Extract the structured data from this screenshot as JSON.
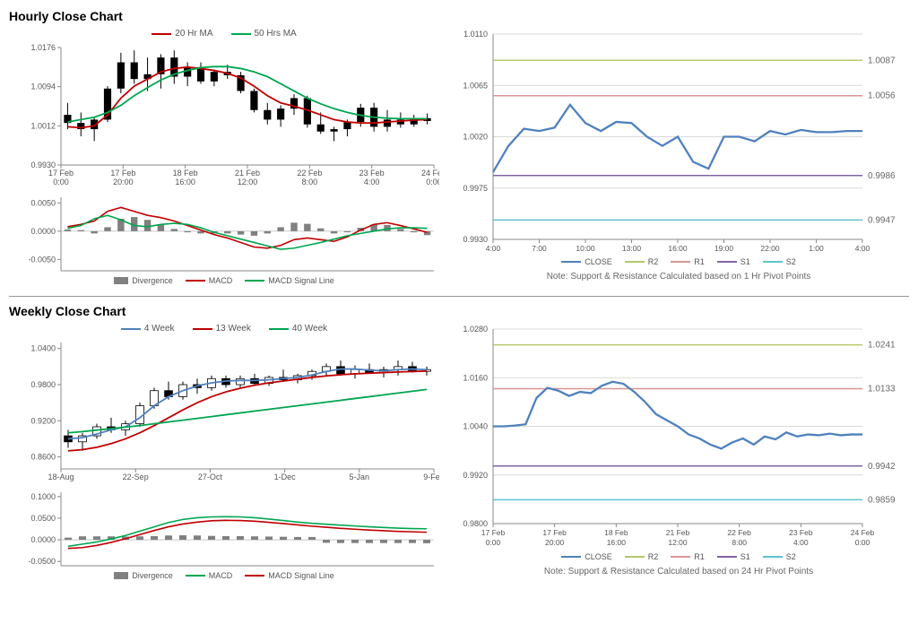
{
  "colors": {
    "ma_red": "#c00000",
    "ma_green": "#00a650",
    "ma_blue": "#4f81bd",
    "candle": "#111111",
    "div_gray": "#808080",
    "close_blue": "#4f81bd",
    "r2": "#b4c96b",
    "r1": "#d99694",
    "s1": "#8064a2",
    "s2": "#5dc3cf",
    "grid": "#d9d9d9",
    "axis": "#888888"
  },
  "hourly": {
    "title": "Hourly Close Chart",
    "price": {
      "legend": {
        "ma20": "20 Hr MA",
        "ma50": "50 Hrs MA"
      },
      "ylim": [
        0.993,
        1.0176
      ],
      "yticks": [
        0.993,
        1.0012,
        1.0094,
        1.0176
      ],
      "xticks": [
        "17 Feb",
        "17 Feb",
        "18 Feb",
        "21 Feb",
        "22 Feb",
        "23 Feb",
        "24 Feb"
      ],
      "xticks_sub": [
        "0:00",
        "20:00",
        "16:00",
        "12:00",
        "8:00",
        "4:00",
        "0:00"
      ],
      "candles": [
        {
          "o": 1.0035,
          "h": 1.006,
          "l": 1.0005,
          "c": 1.0018
        },
        {
          "o": 1.0018,
          "h": 1.004,
          "l": 0.999,
          "c": 1.0005
        },
        {
          "o": 1.0005,
          "h": 1.003,
          "l": 0.998,
          "c": 1.0025
        },
        {
          "o": 1.0025,
          "h": 1.0095,
          "l": 1.002,
          "c": 1.009
        },
        {
          "o": 1.009,
          "h": 1.0165,
          "l": 1.008,
          "c": 1.0145
        },
        {
          "o": 1.0145,
          "h": 1.017,
          "l": 1.01,
          "c": 1.011
        },
        {
          "o": 1.011,
          "h": 1.0155,
          "l": 1.0085,
          "c": 1.012
        },
        {
          "o": 1.012,
          "h": 1.0162,
          "l": 1.009,
          "c": 1.0155
        },
        {
          "o": 1.0155,
          "h": 1.017,
          "l": 1.01,
          "c": 1.0115
        },
        {
          "o": 1.0115,
          "h": 1.0145,
          "l": 1.0095,
          "c": 1.0135
        },
        {
          "o": 1.0135,
          "h": 1.0145,
          "l": 1.01,
          "c": 1.0105
        },
        {
          "o": 1.0105,
          "h": 1.013,
          "l": 1.0095,
          "c": 1.0125
        },
        {
          "o": 1.0125,
          "h": 1.014,
          "l": 1.011,
          "c": 1.0118
        },
        {
          "o": 1.0118,
          "h": 1.0125,
          "l": 1.008,
          "c": 1.0085
        },
        {
          "o": 1.0085,
          "h": 1.009,
          "l": 1.004,
          "c": 1.0045
        },
        {
          "o": 1.0045,
          "h": 1.006,
          "l": 1.0015,
          "c": 1.0025
        },
        {
          "o": 1.0025,
          "h": 1.0055,
          "l": 1.001,
          "c": 1.0048
        },
        {
          "o": 1.0048,
          "h": 1.0078,
          "l": 1.0035,
          "c": 1.007
        },
        {
          "o": 1.007,
          "h": 1.0075,
          "l": 1.0008,
          "c": 1.0015
        },
        {
          "o": 1.0015,
          "h": 1.004,
          "l": 0.9995,
          "c": 1.0
        },
        {
          "o": 1.0,
          "h": 1.001,
          "l": 0.998,
          "c": 1.0005
        },
        {
          "o": 1.0005,
          "h": 1.0025,
          "l": 0.999,
          "c": 1.002
        },
        {
          "o": 1.002,
          "h": 1.0058,
          "l": 1.001,
          "c": 1.005
        },
        {
          "o": 1.005,
          "h": 1.006,
          "l": 1.0,
          "c": 1.001
        },
        {
          "o": 1.001,
          "h": 1.0045,
          "l": 1.0,
          "c": 1.0025
        },
        {
          "o": 1.0025,
          "h": 1.004,
          "l": 1.0008,
          "c": 1.0015
        },
        {
          "o": 1.0015,
          "h": 1.0035,
          "l": 1.001,
          "c": 1.0028
        },
        {
          "o": 1.0028,
          "h": 1.0038,
          "l": 1.0015,
          "c": 1.0022
        }
      ],
      "ma20": [
        1.001,
        1.0008,
        1.0012,
        1.0035,
        1.007,
        1.0095,
        1.011,
        1.0125,
        1.0132,
        1.0135,
        1.0132,
        1.0128,
        1.0122,
        1.0112,
        1.0095,
        1.0075,
        1.006,
        1.0053,
        1.0045,
        1.0035,
        1.0025,
        1.002,
        1.0018,
        1.0018,
        1.002,
        1.0022,
        1.0024,
        1.0025
      ],
      "ma50": [
        1.002,
        1.0025,
        1.003,
        1.004,
        1.0055,
        1.0075,
        1.0092,
        1.0108,
        1.012,
        1.0128,
        1.0134,
        1.0136,
        1.0136,
        1.0132,
        1.0125,
        1.0115,
        1.01,
        1.0085,
        1.007,
        1.0058,
        1.0048,
        1.004,
        1.0034,
        1.003,
        1.0028,
        1.0027,
        1.0027,
        1.0027
      ]
    },
    "macd": {
      "ylim": [
        -0.007,
        0.006
      ],
      "yticks": [
        -0.005,
        0.0,
        0.005
      ],
      "legend": {
        "div": "Divergence",
        "macd": "MACD",
        "sig": "MACD Signal Line"
      },
      "macd": [
        0.0008,
        0.0012,
        0.0018,
        0.0035,
        0.0042,
        0.0035,
        0.0028,
        0.0024,
        0.0018,
        0.001,
        0.0002,
        -0.0006,
        -0.0012,
        -0.002,
        -0.0028,
        -0.003,
        -0.0025,
        -0.0015,
        -0.0012,
        -0.0015,
        -0.0018,
        -0.001,
        0.0002,
        0.0012,
        0.0015,
        0.001,
        0.0004,
        -0.0002
      ],
      "signal": [
        0.0005,
        0.001,
        0.0022,
        0.0028,
        0.002,
        0.001,
        0.0008,
        0.0012,
        0.0014,
        0.0012,
        0.0006,
        -0.0002,
        -0.0008,
        -0.0014,
        -0.002,
        -0.0026,
        -0.0032,
        -0.003,
        -0.0025,
        -0.002,
        -0.0014,
        -0.0008,
        -0.0004,
        0.0,
        0.0004,
        0.0006,
        0.0006,
        0.0005
      ],
      "div": [
        0.0003,
        0.0002,
        -0.0004,
        0.0007,
        0.0022,
        0.0025,
        0.002,
        0.0012,
        0.0004,
        -0.0002,
        -0.0004,
        -0.0004,
        -0.0004,
        -0.0006,
        -0.0008,
        -0.0004,
        0.0007,
        0.0015,
        0.0013,
        0.0005,
        -0.0004,
        -0.0002,
        0.0006,
        0.0012,
        0.0011,
        0.0004,
        -0.0002,
        -0.0007
      ]
    },
    "sr": {
      "ylim": [
        0.993,
        1.011
      ],
      "yticks": [
        0.993,
        0.9975,
        1.002,
        1.0065,
        1.011
      ],
      "xticks": [
        "4:00",
        "7:00",
        "10:00",
        "13:00",
        "16:00",
        "19:00",
        "22:00",
        "1:00",
        "4:00"
      ],
      "legend": {
        "close": "CLOSE",
        "r2": "R2",
        "r1": "R1",
        "s1": "S1",
        "s2": "S2"
      },
      "levels": {
        "r2": 1.0087,
        "r1": 1.0056,
        "s1": 0.9986,
        "s2": 0.9947
      },
      "level_labels": {
        "r2": "1.0087",
        "r1": "1.0056",
        "s1": "0.9986",
        "s2": "0.9947"
      },
      "close": [
        0.9989,
        1.0012,
        1.0027,
        1.0025,
        1.0028,
        1.0048,
        1.0032,
        1.0025,
        1.0033,
        1.0032,
        1.002,
        1.0012,
        1.002,
        0.9998,
        0.9992,
        1.002,
        1.002,
        1.0016,
        1.0025,
        1.0022,
        1.0026,
        1.0024,
        1.0024,
        1.0025,
        1.0025
      ],
      "note": "Note: Support & Resistance Calculated based on 1 Hr Pivot Points"
    }
  },
  "weekly": {
    "title": "Weekly Close Chart",
    "price": {
      "legend": {
        "w4": "4 Week",
        "w13": "13 Week",
        "w40": "40 Week"
      },
      "ylim": [
        0.84,
        1.05
      ],
      "yticks": [
        0.86,
        0.92,
        0.98,
        1.04
      ],
      "xticks": [
        "18-Aug",
        "22-Sep",
        "27-Oct",
        "1-Dec",
        "5-Jan",
        "9-Feb"
      ],
      "candles": [
        {
          "o": 0.895,
          "h": 0.905,
          "l": 0.875,
          "c": 0.885
        },
        {
          "o": 0.885,
          "h": 0.9,
          "l": 0.87,
          "c": 0.895
        },
        {
          "o": 0.895,
          "h": 0.915,
          "l": 0.89,
          "c": 0.91
        },
        {
          "o": 0.91,
          "h": 0.925,
          "l": 0.9,
          "c": 0.905
        },
        {
          "o": 0.905,
          "h": 0.92,
          "l": 0.895,
          "c": 0.915
        },
        {
          "o": 0.915,
          "h": 0.95,
          "l": 0.91,
          "c": 0.945
        },
        {
          "o": 0.945,
          "h": 0.975,
          "l": 0.94,
          "c": 0.97
        },
        {
          "o": 0.97,
          "h": 0.985,
          "l": 0.955,
          "c": 0.96
        },
        {
          "o": 0.96,
          "h": 0.985,
          "l": 0.955,
          "c": 0.98
        },
        {
          "o": 0.98,
          "h": 0.99,
          "l": 0.965,
          "c": 0.975
        },
        {
          "o": 0.975,
          "h": 0.995,
          "l": 0.97,
          "c": 0.99
        },
        {
          "o": 0.99,
          "h": 0.995,
          "l": 0.975,
          "c": 0.98
        },
        {
          "o": 0.98,
          "h": 0.995,
          "l": 0.975,
          "c": 0.99
        },
        {
          "o": 0.99,
          "h": 0.998,
          "l": 0.98,
          "c": 0.982
        },
        {
          "o": 0.982,
          "h": 0.995,
          "l": 0.978,
          "c": 0.992
        },
        {
          "o": 0.992,
          "h": 1.005,
          "l": 0.985,
          "c": 0.988
        },
        {
          "o": 0.988,
          "h": 0.998,
          "l": 0.982,
          "c": 0.995
        },
        {
          "o": 0.995,
          "h": 1.005,
          "l": 0.988,
          "c": 1.002
        },
        {
          "o": 1.002,
          "h": 1.015,
          "l": 0.995,
          "c": 1.01
        },
        {
          "o": 1.01,
          "h": 1.02,
          "l": 0.995,
          "c": 0.998
        },
        {
          "o": 0.998,
          "h": 1.012,
          "l": 0.99,
          "c": 1.005
        },
        {
          "o": 1.005,
          "h": 1.015,
          "l": 0.998,
          "c": 1.0
        },
        {
          "o": 1.0,
          "h": 1.01,
          "l": 0.992,
          "c": 1.005
        },
        {
          "o": 1.005,
          "h": 1.02,
          "l": 0.995,
          "c": 1.01
        },
        {
          "o": 1.01,
          "h": 1.018,
          "l": 1.0,
          "c": 1.002
        },
        {
          "o": 1.002,
          "h": 1.01,
          "l": 0.995,
          "c": 1.005
        }
      ],
      "w4": [
        0.89,
        0.892,
        0.898,
        0.905,
        0.91,
        0.925,
        0.945,
        0.96,
        0.97,
        0.978,
        0.983,
        0.986,
        0.987,
        0.987,
        0.988,
        0.99,
        0.992,
        0.996,
        1.002,
        1.006,
        1.006,
        1.004,
        1.003,
        1.005,
        1.006,
        1.005
      ],
      "w13": [
        0.87,
        0.872,
        0.876,
        0.882,
        0.89,
        0.9,
        0.912,
        0.925,
        0.938,
        0.95,
        0.96,
        0.968,
        0.974,
        0.979,
        0.983,
        0.986,
        0.989,
        0.992,
        0.9945,
        0.9965,
        0.998,
        0.999,
        1.0,
        1.001,
        1.0018,
        1.0025
      ],
      "w40": [
        0.9,
        0.902,
        0.9045,
        0.907,
        0.9095,
        0.912,
        0.915,
        0.918,
        0.921,
        0.924,
        0.927,
        0.93,
        0.933,
        0.936,
        0.939,
        0.942,
        0.945,
        0.948,
        0.951,
        0.954,
        0.957,
        0.96,
        0.963,
        0.966,
        0.969,
        0.972
      ]
    },
    "macd": {
      "ylim": [
        -0.06,
        0.11
      ],
      "yticks": [
        -0.05,
        0.0,
        0.05,
        0.1
      ],
      "legend": {
        "div": "Divergence",
        "macd": "MACD",
        "sig": "MACD Signal Line"
      },
      "macd": [
        -0.015,
        -0.01,
        -0.005,
        0.002,
        0.01,
        0.02,
        0.03,
        0.04,
        0.047,
        0.051,
        0.053,
        0.0535,
        0.053,
        0.051,
        0.048,
        0.0445,
        0.041,
        0.038,
        0.036,
        0.034,
        0.032,
        0.03,
        0.0285,
        0.027,
        0.026,
        0.0255
      ],
      "signal": [
        -0.02,
        -0.018,
        -0.013,
        -0.006,
        0.0025,
        0.012,
        0.0215,
        0.03,
        0.0365,
        0.041,
        0.044,
        0.045,
        0.0445,
        0.043,
        0.0405,
        0.0375,
        0.0345,
        0.0315,
        0.029,
        0.0265,
        0.0245,
        0.0225,
        0.021,
        0.0195,
        0.0185,
        0.0175
      ],
      "div": [
        0.005,
        0.008,
        0.008,
        0.008,
        0.0075,
        0.008,
        0.0085,
        0.01,
        0.0105,
        0.01,
        0.009,
        0.0085,
        0.0085,
        0.008,
        0.0075,
        0.007,
        0.0065,
        0.0065,
        -0.007,
        -0.0075,
        -0.0075,
        -0.0075,
        -0.0075,
        -0.0075,
        -0.0075,
        -0.008
      ]
    },
    "sr": {
      "ylim": [
        0.98,
        1.028
      ],
      "yticks": [
        0.98,
        0.992,
        1.004,
        1.016,
        1.028
      ],
      "xticks": [
        "17 Feb",
        "17 Feb",
        "18 Feb",
        "21 Feb",
        "22 Feb",
        "23 Feb",
        "24 Feb"
      ],
      "xticks_sub": [
        "0:00",
        "20:00",
        "16:00",
        "12:00",
        "8:00",
        "4:00",
        "0:00"
      ],
      "legend": {
        "close": "CLOSE",
        "r2": "R2",
        "r1": "R1",
        "s1": "S1",
        "s2": "S2"
      },
      "levels": {
        "r2": 1.0241,
        "r1": 1.0133,
        "s1": 0.9942,
        "s2": 0.9859
      },
      "level_labels": {
        "r2": "1.0241",
        "r1": "1.0133",
        "s1": "0.9942",
        "s2": "0.9859"
      },
      "close": [
        1.004,
        1.004,
        1.0042,
        1.0045,
        1.011,
        1.0135,
        1.0128,
        1.0115,
        1.0125,
        1.0122,
        1.014,
        1.015,
        1.0145,
        1.0125,
        1.01,
        1.007,
        1.0055,
        1.004,
        1.002,
        1.001,
        0.9995,
        0.9985,
        1.0,
        1.001,
        0.9995,
        1.0015,
        1.0008,
        1.0025,
        1.0015,
        1.002,
        1.0018,
        1.0022,
        1.0018,
        1.002,
        1.002
      ],
      "note": "Note: Support & Resistance Calculated based on 24 Hr Pivot Points"
    }
  }
}
